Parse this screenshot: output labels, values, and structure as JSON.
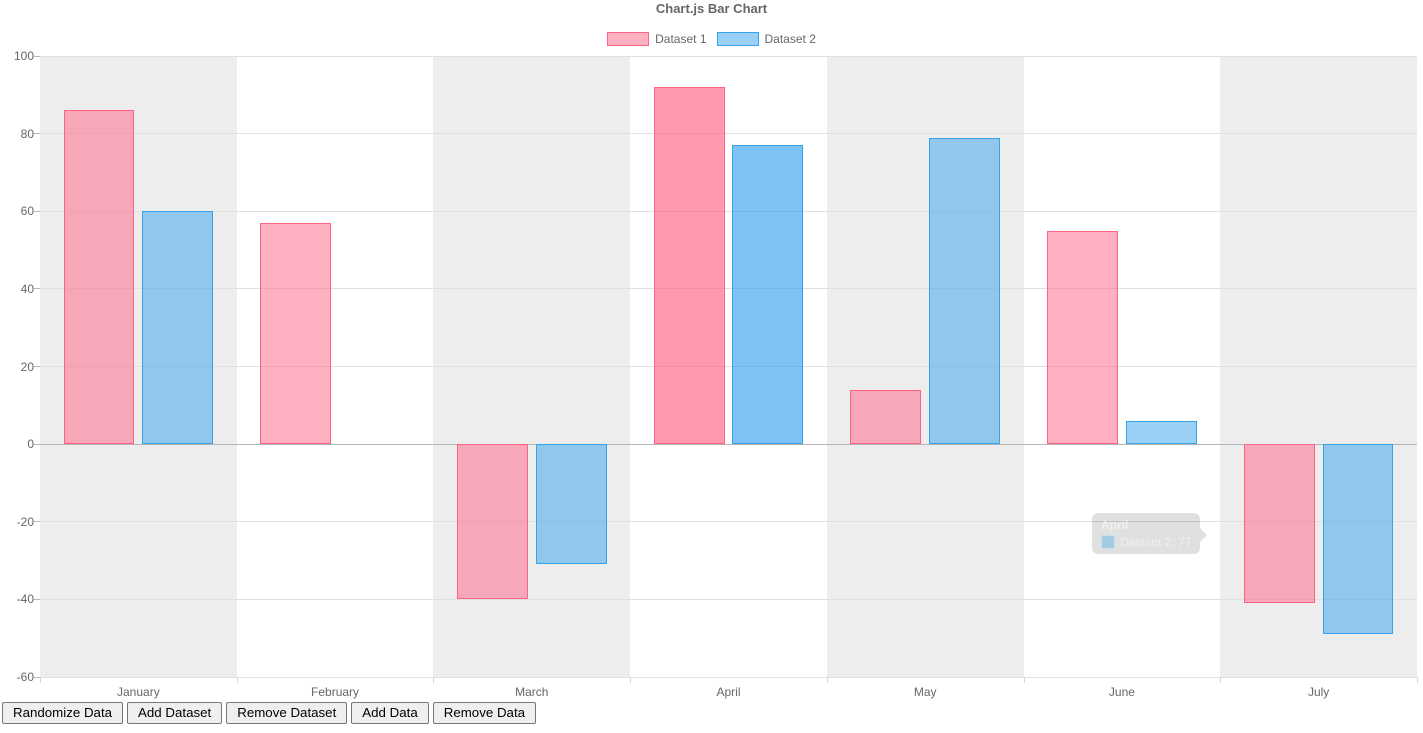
{
  "chart": {
    "title": "Chart.js Bar Chart"
  },
  "chart_data": {
    "type": "bar",
    "title": "Chart.js Bar Chart",
    "categories": [
      "January",
      "February",
      "March",
      "April",
      "May",
      "June",
      "July"
    ],
    "series": [
      {
        "name": "Dataset 1",
        "values": [
          86,
          57,
          -40,
          92,
          14,
          55,
          -41
        ],
        "border_color": "#ff6384",
        "fill_color": "rgba(255,99,132,0.5)",
        "hover_fill_color": "rgba(255,99,132,0.65)"
      },
      {
        "name": "Dataset 2",
        "values": [
          60,
          0,
          -31,
          77,
          79,
          6,
          -49
        ],
        "border_color": "#36a2eb",
        "fill_color": "rgba(54,162,235,0.5)",
        "hover_fill_color": "rgba(54,162,235,0.65)"
      }
    ],
    "ylim": [
      -60,
      100
    ],
    "ytick_step": 20,
    "ytick_labels": [
      "100",
      "80",
      "60",
      "40",
      "20",
      "0",
      "-20",
      "-40",
      "-60"
    ],
    "grid": true,
    "legend_position": "top",
    "hovered_category_index": 3,
    "background_stripe_color": "#ededed",
    "gridline_color": "#e0e0e0",
    "zero_line_color": "#b5b5b5",
    "axis_text_color": "#666666"
  },
  "tooltip": {
    "title": "April",
    "body": "Dataset 2: 77",
    "swatch_color": "rgba(54,162,235,0.35)"
  },
  "toolbar": {
    "buttons": [
      {
        "label": "Randomize Data"
      },
      {
        "label": "Add Dataset"
      },
      {
        "label": "Remove Dataset"
      },
      {
        "label": "Add Data"
      },
      {
        "label": "Remove Data"
      }
    ]
  }
}
